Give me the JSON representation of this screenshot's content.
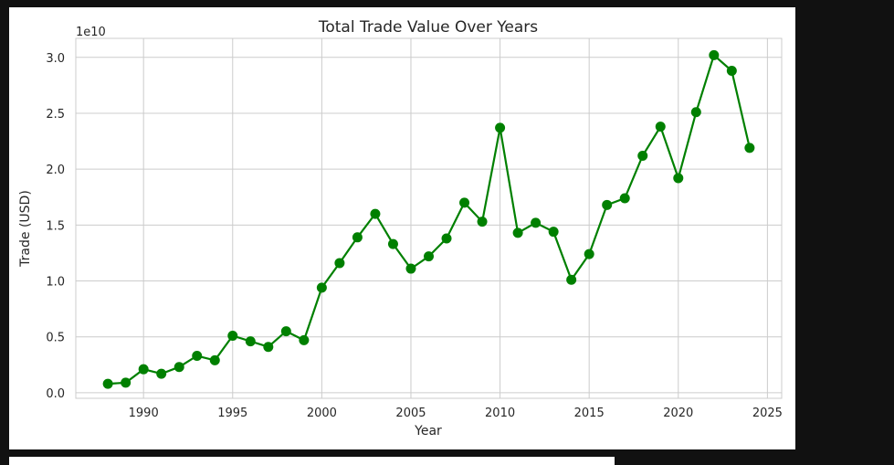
{
  "chart_data": {
    "type": "line",
    "title": "Total Trade Value Over Years",
    "xlabel": "Year",
    "ylabel": "Trade (USD)",
    "y_offset_label": "1e10",
    "x_ticks": [
      "1990",
      "1995",
      "2000",
      "2005",
      "2010",
      "2015",
      "2020",
      "2025"
    ],
    "y_ticks": [
      "0.0",
      "0.5",
      "1.0",
      "1.5",
      "2.0",
      "2.5",
      "3.0"
    ],
    "xlim": [
      1986.2,
      2025.8
    ],
    "ylim": [
      -0.05,
      3.17
    ],
    "grid": true,
    "color": "#008000",
    "series": [
      {
        "x": [
          1988,
          1989,
          1990,
          1991,
          1992,
          1993,
          1994,
          1995,
          1996,
          1997,
          1998,
          1999,
          2000,
          2001,
          2002,
          2003,
          2004,
          2005,
          2006,
          2007,
          2008,
          2009,
          2010,
          2011,
          2012,
          2013,
          2014,
          2015,
          2016,
          2017,
          2018,
          2019,
          2020,
          2021,
          2022,
          2023,
          2024
        ],
        "y": [
          0.08,
          0.09,
          0.21,
          0.17,
          0.23,
          0.33,
          0.29,
          0.51,
          0.46,
          0.41,
          0.55,
          0.47,
          0.94,
          1.16,
          1.39,
          1.6,
          1.33,
          1.11,
          1.22,
          1.38,
          1.7,
          1.53,
          2.37,
          1.43,
          1.52,
          1.44,
          1.01,
          1.24,
          1.68,
          1.74,
          2.12,
          2.38,
          1.92,
          2.51,
          3.02,
          2.88,
          2.19
        ]
      }
    ]
  }
}
